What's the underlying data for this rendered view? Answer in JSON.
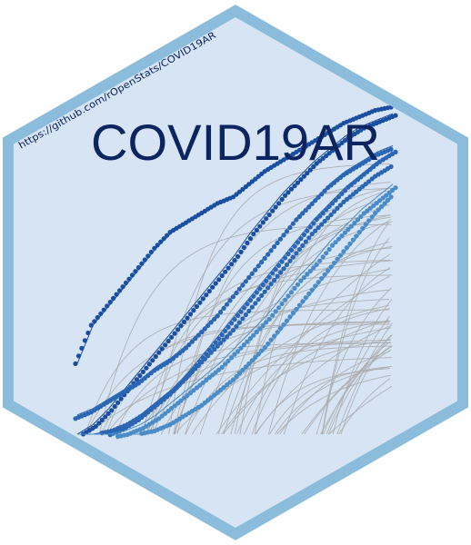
{
  "sticker": {
    "title": "COVID19AR",
    "url": "https://github.com/rOpenStats/COVID19AR"
  },
  "colors": {
    "hex_fill": "#d6e4f4",
    "hex_border": "#8cbcdb",
    "title": "#0c2460",
    "url": "#0c2460",
    "grey_lines": "#a9a9a9",
    "dark_series": "#1a4ea0",
    "mid_series": "#2b66b4",
    "light_series": "#4a8cc8"
  },
  "chart_data": {
    "type": "line",
    "title": "",
    "xlabel": "",
    "ylabel": "",
    "x": [
      0,
      1,
      2,
      3,
      4,
      5,
      6,
      7,
      8,
      9,
      10,
      11,
      12,
      13,
      14,
      15,
      16,
      17,
      18,
      19,
      20
    ],
    "background_series_count": 60,
    "series": [
      {
        "values": [
          2.2,
          3.4,
          4.0,
          4.6,
          5.2,
          5.8,
          6.3,
          6.6,
          6.9,
          7.2,
          7.4,
          7.8,
          8.2,
          8.5,
          8.8,
          9.1,
          9.4,
          9.7,
          9.9,
          10.1,
          10.2
        ]
      },
      {
        "values": [
          0.0,
          0.3,
          0.8,
          1.4,
          2.0,
          2.6,
          3.2,
          3.8,
          4.4,
          5.0,
          5.6,
          6.3,
          6.9,
          7.5,
          8.0,
          8.5,
          8.9,
          9.3,
          9.6,
          9.8,
          10.0
        ]
      },
      {
        "values": [
          0.6,
          0.8,
          1.1,
          1.4,
          1.7,
          2.1,
          2.4,
          2.8,
          3.3,
          3.8,
          4.4,
          5.0,
          5.6,
          6.2,
          6.8,
          7.3,
          7.8,
          8.2,
          8.5,
          8.8,
          9.0
        ]
      },
      {
        "values": [
          0.0,
          0.0,
          0.1,
          0.3,
          0.6,
          1.0,
          1.4,
          1.9,
          2.5,
          3.1,
          3.7,
          4.3,
          4.9,
          5.5,
          6.1,
          6.7,
          7.2,
          7.7,
          8.1,
          8.5,
          8.8
        ]
      },
      {
        "values": [
          0.0,
          0.0,
          0.0,
          0.2,
          0.5,
          0.9,
          1.3,
          1.8,
          2.3,
          2.8,
          3.3,
          3.9,
          4.5,
          5.1,
          5.7,
          6.3,
          6.8,
          7.3,
          7.7,
          8.1,
          8.4
        ]
      },
      {
        "values": [
          0.0,
          0.0,
          0.0,
          0.1,
          0.3,
          0.6,
          1.0,
          1.4,
          1.8,
          2.2,
          2.7,
          3.2,
          3.7,
          4.3,
          4.9,
          5.4,
          6.0,
          6.5,
          7.0,
          7.4,
          7.8
        ]
      },
      {
        "values": [
          0.0,
          0.0,
          0.0,
          0.0,
          0.0,
          0.1,
          0.3,
          0.6,
          0.9,
          1.3,
          1.7,
          2.2,
          2.7,
          3.3,
          3.9,
          4.5,
          5.1,
          5.7,
          6.3,
          6.9,
          7.4
        ]
      }
    ]
  }
}
